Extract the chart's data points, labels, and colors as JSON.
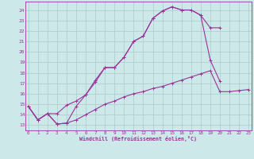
{
  "xlabel": "Windchill (Refroidissement éolien,°C)",
  "bg_color": "#cce8e8",
  "grid_color": "#aacccc",
  "line_color": "#993399",
  "xticks": [
    0,
    1,
    2,
    3,
    4,
    5,
    6,
    7,
    8,
    9,
    10,
    11,
    12,
    13,
    14,
    15,
    16,
    17,
    18,
    19,
    20,
    21,
    22,
    23
  ],
  "yticks": [
    13,
    14,
    15,
    16,
    17,
    18,
    19,
    20,
    21,
    22,
    23,
    24
  ],
  "line1_x": [
    0,
    1,
    2,
    3,
    4,
    5,
    6,
    7,
    8,
    9,
    10,
    11,
    12,
    13,
    14,
    15,
    16,
    17,
    18,
    19,
    20
  ],
  "line1_y": [
    14.8,
    13.5,
    14.1,
    14.1,
    14.9,
    15.3,
    15.9,
    17.1,
    18.5,
    18.5,
    19.5,
    21.0,
    21.5,
    23.2,
    23.9,
    24.3,
    24.0,
    24.0,
    23.5,
    22.3,
    22.3
  ],
  "line2_x": [
    0,
    1,
    2,
    3,
    4,
    5,
    6,
    7,
    8,
    9,
    10,
    11,
    12,
    13,
    14,
    15,
    16,
    17,
    18,
    19,
    20,
    21,
    22,
    23
  ],
  "line2_y": [
    14.8,
    13.5,
    14.1,
    13.1,
    13.2,
    14.8,
    15.9,
    17.3,
    18.5,
    18.5,
    19.5,
    21.0,
    21.5,
    23.2,
    23.9,
    24.3,
    24.0,
    24.0,
    23.5,
    19.2,
    17.2,
    null,
    null,
    null
  ],
  "line3_x": [
    0,
    1,
    2,
    3,
    4,
    5,
    6,
    7,
    8,
    9,
    10,
    11,
    12,
    13,
    14,
    15,
    16,
    17,
    18,
    19,
    20,
    21,
    22,
    23
  ],
  "line3_y": [
    14.8,
    13.5,
    14.1,
    13.1,
    13.2,
    13.5,
    14.0,
    14.5,
    15.0,
    15.3,
    15.7,
    16.0,
    16.2,
    16.5,
    16.7,
    17.0,
    17.3,
    17.6,
    17.9,
    18.2,
    16.2,
    16.2,
    16.3,
    16.4
  ]
}
